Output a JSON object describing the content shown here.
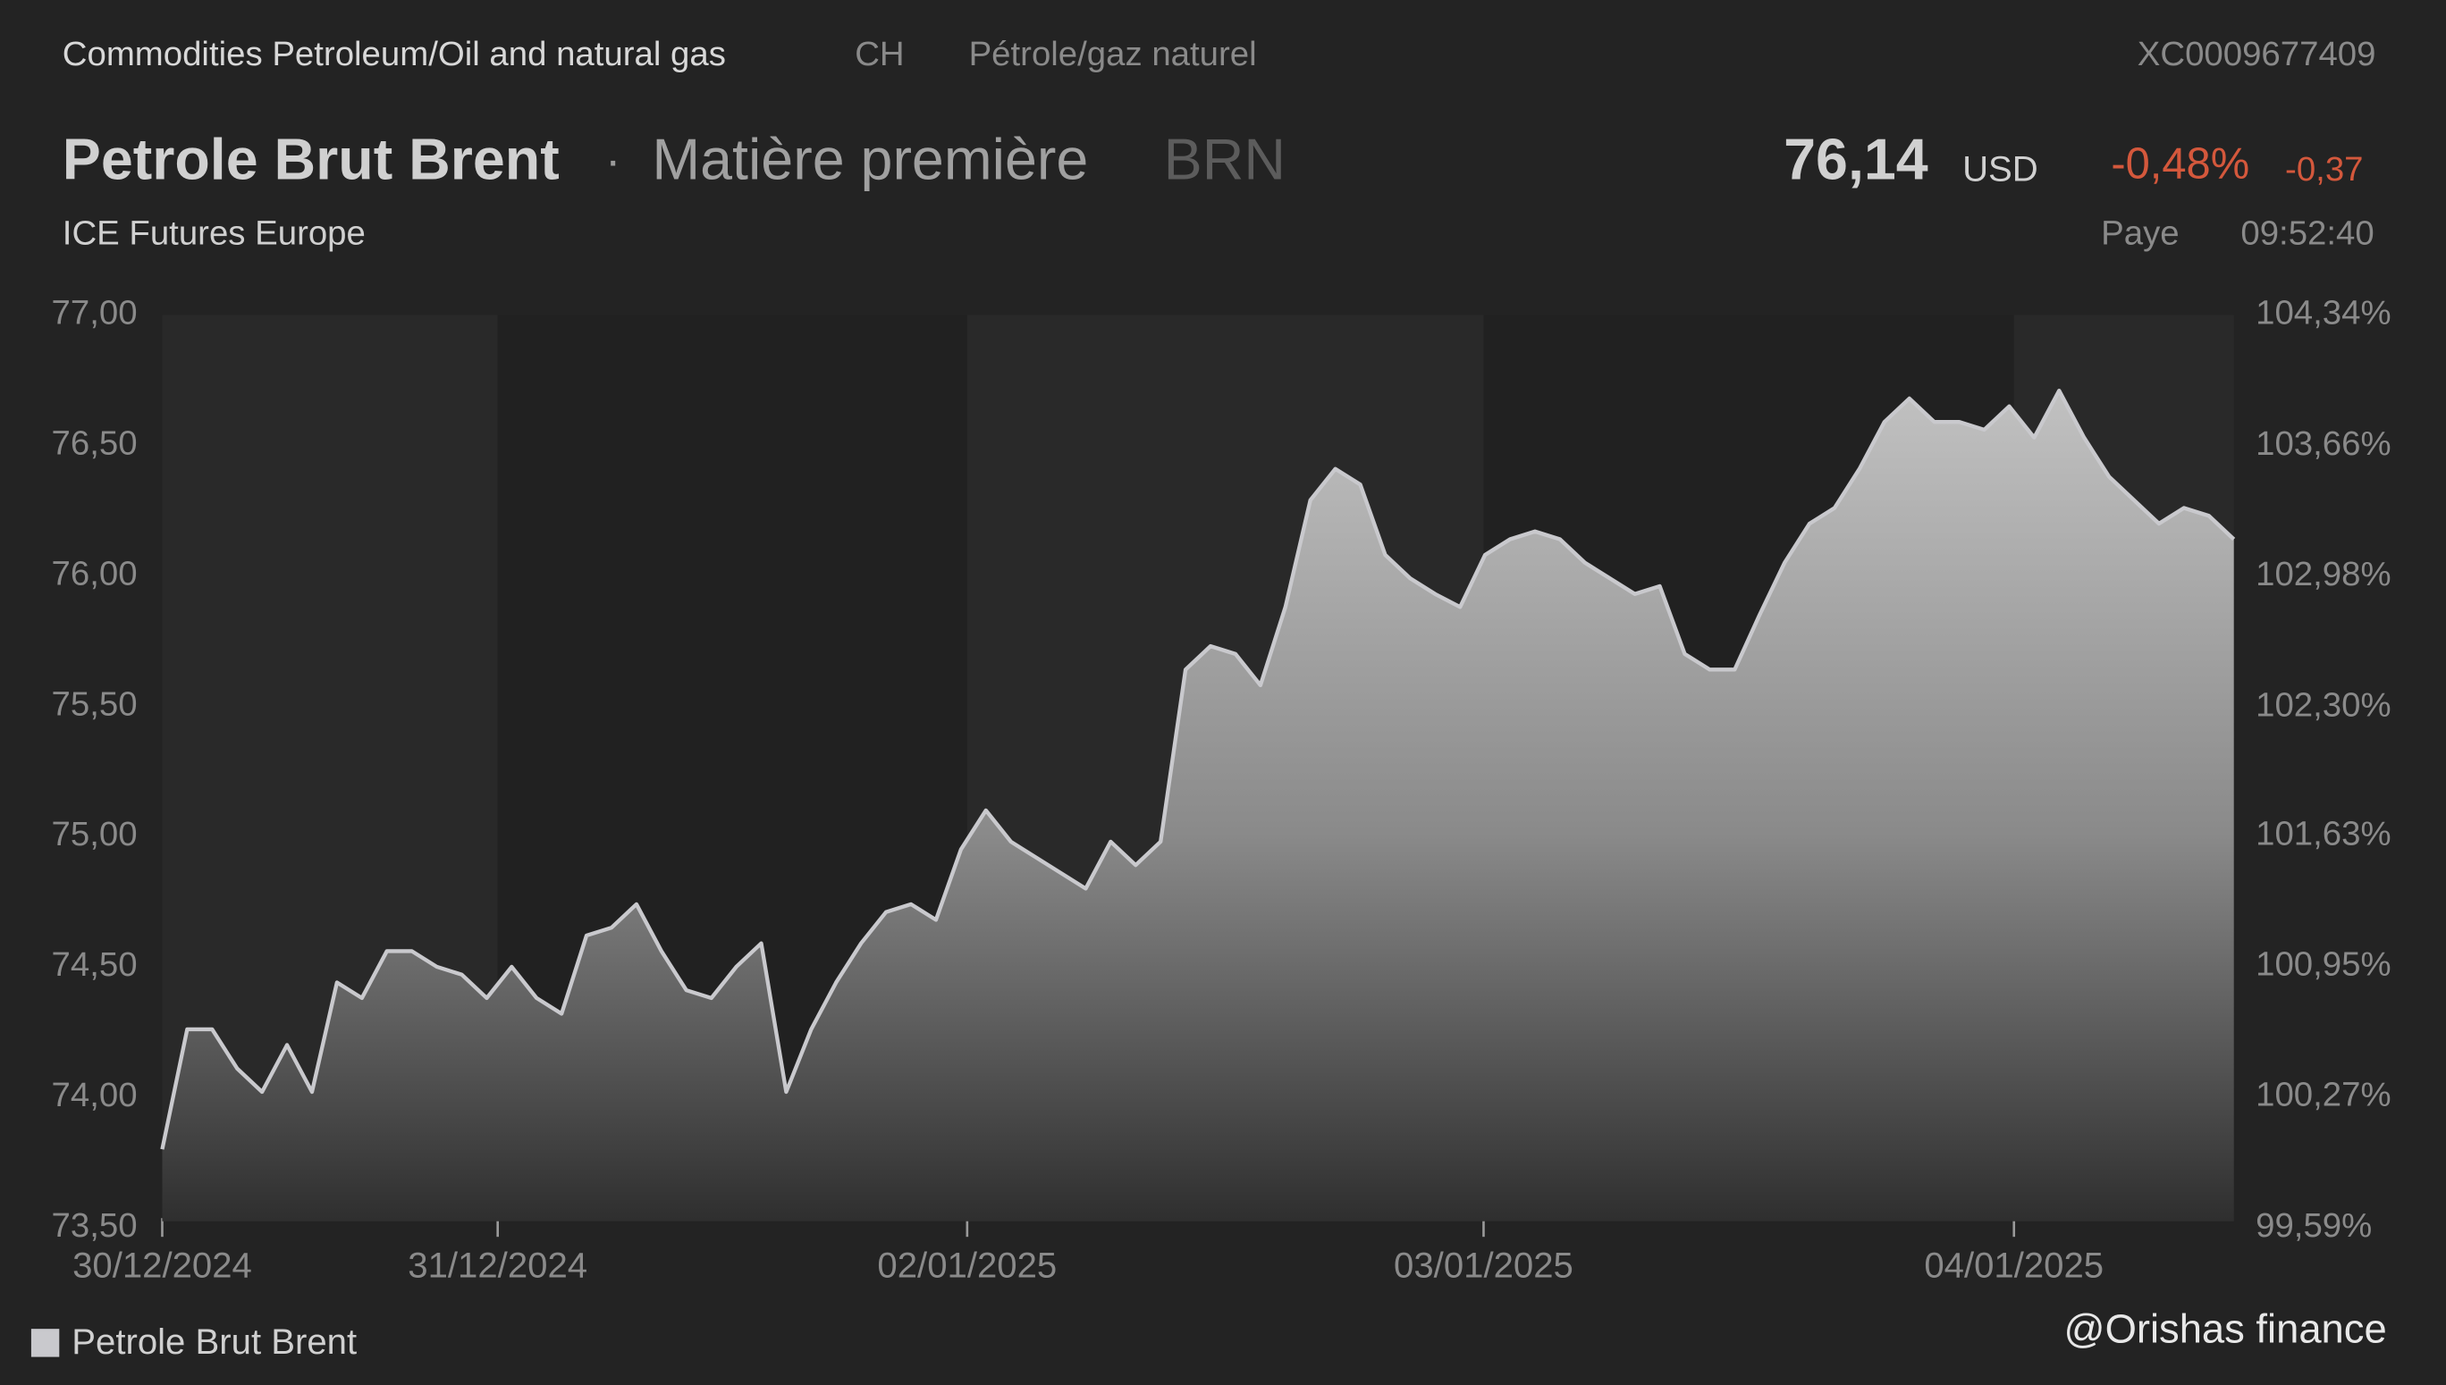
{
  "header": {
    "breadcrumb": "Commodities Petroleum/Oil and natural gas",
    "country": "CH",
    "category": "Pétrole/gaz naturel",
    "isin": "XC0009677409",
    "title": "Petrole Brut Brent",
    "separator": "·",
    "kind": "Matière première",
    "ticker": "BRN",
    "price": "76,14",
    "currency": "USD",
    "change_pct": "-0,48%",
    "change_abs": "-0,37",
    "exchange": "ICE Futures Europe",
    "status": "Paye",
    "time": "09:52:40"
  },
  "chart_data": {
    "type": "area",
    "x": [
      0,
      1,
      2,
      3,
      4,
      5,
      6,
      7,
      8,
      9,
      10,
      11,
      12,
      13,
      14,
      15,
      16,
      17,
      18,
      19,
      20,
      21,
      22,
      23,
      24,
      25,
      26,
      27,
      28,
      29,
      30,
      31,
      32,
      33,
      34,
      35,
      36,
      37,
      38,
      39,
      40,
      41,
      42,
      43,
      44,
      45,
      46,
      47,
      48,
      49,
      50,
      51,
      52,
      53,
      54,
      55,
      56,
      57,
      58,
      59,
      60,
      61,
      62,
      63,
      64,
      65,
      66,
      67,
      68,
      69,
      70,
      71,
      72,
      73,
      74,
      75,
      76,
      77,
      78,
      79,
      80,
      81,
      82,
      83
    ],
    "series": [
      {
        "name": "Petrole Brut Brent",
        "color": "#c9c9cd",
        "values": [
          73.8,
          74.26,
          74.26,
          74.11,
          74.02,
          74.2,
          74.02,
          74.44,
          74.38,
          74.56,
          74.56,
          74.5,
          74.47,
          74.38,
          74.5,
          74.38,
          74.32,
          74.62,
          74.65,
          74.74,
          74.56,
          74.41,
          74.38,
          74.5,
          74.59,
          74.02,
          74.26,
          74.44,
          74.59,
          74.71,
          74.74,
          74.68,
          74.95,
          75.1,
          74.98,
          74.92,
          74.86,
          74.8,
          74.98,
          74.89,
          74.98,
          75.64,
          75.73,
          75.7,
          75.58,
          75.88,
          76.29,
          76.41,
          76.35,
          76.08,
          75.99,
          75.93,
          75.88,
          76.08,
          76.14,
          76.17,
          76.14,
          76.05,
          75.99,
          75.93,
          75.96,
          75.7,
          75.64,
          75.64,
          75.85,
          76.05,
          76.2,
          76.26,
          76.41,
          76.59,
          76.68,
          76.59,
          76.59,
          76.56,
          76.65,
          76.53,
          76.71,
          76.53,
          76.38,
          76.29,
          76.2,
          76.26,
          76.23,
          76.14
        ]
      }
    ],
    "xlim": [
      0,
      83
    ],
    "xticks": [
      {
        "value": 0,
        "label": "30/12/2024"
      },
      {
        "value": 13.44,
        "label": "31/12/2024"
      },
      {
        "value": 32.25,
        "label": "02/01/2025"
      },
      {
        "value": 52.94,
        "label": "03/01/2025"
      },
      {
        "value": 74.19,
        "label": "04/01/2025"
      }
    ],
    "ylim": [
      73.5,
      77
    ],
    "yticks": [
      {
        "value": 73.5,
        "label": "73,50"
      },
      {
        "value": 74,
        "label": "74,00"
      },
      {
        "value": 74.5,
        "label": "74,50"
      },
      {
        "value": 75,
        "label": "75,00"
      },
      {
        "value": 75.5,
        "label": "75,50"
      },
      {
        "value": 76,
        "label": "76,00"
      },
      {
        "value": 76.5,
        "label": "76,50"
      },
      {
        "value": 77,
        "label": "77,00"
      }
    ],
    "y2lim": [
      99.59,
      104.34
    ],
    "y2ticks": [
      {
        "value": 99.59,
        "label": "99,59%"
      },
      {
        "value": 100.27,
        "label": "100,27%"
      },
      {
        "value": 100.95,
        "label": "100,95%"
      },
      {
        "value": 101.63,
        "label": "101,63%"
      },
      {
        "value": 102.3,
        "label": "102,30%"
      },
      {
        "value": 102.98,
        "label": "102,98%"
      },
      {
        "value": 103.66,
        "label": "103,66%"
      },
      {
        "value": 104.34,
        "label": "104,34%"
      }
    ],
    "watermark": "@Orishas finance"
  }
}
